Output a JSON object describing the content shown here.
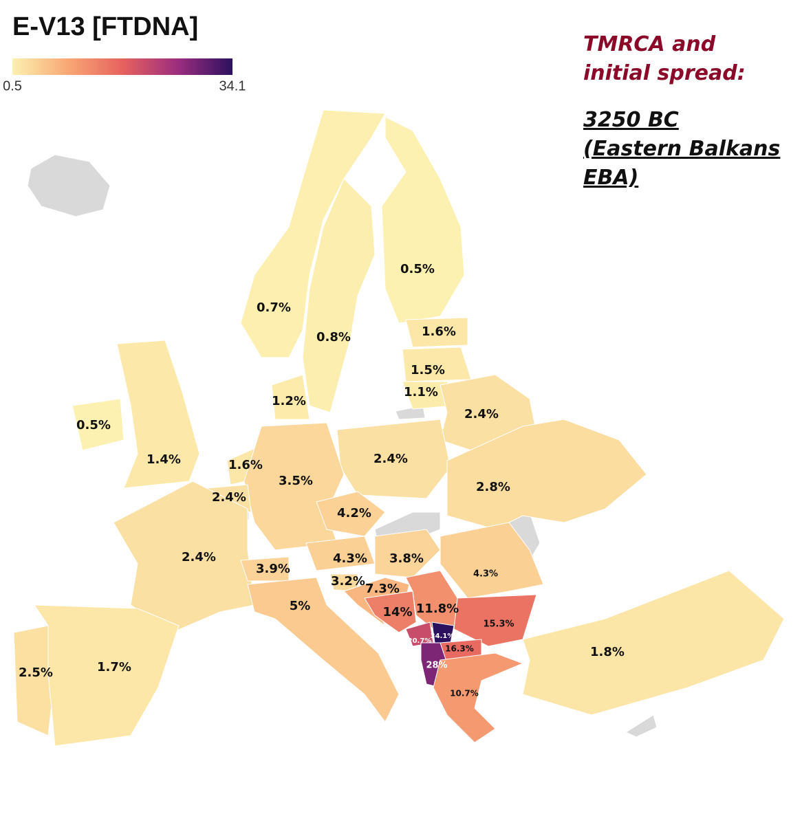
{
  "chart_data": {
    "type": "choropleth",
    "title": "E-V13 [FTDNA]",
    "clim": [
      0.5,
      34.1
    ],
    "cticks": [
      0.5,
      34.1
    ],
    "annotations": [
      "TMRCA and initial spread:",
      "3250 BC (Eastern Balkans EBA)"
    ],
    "values": [
      0.5,
      0.7,
      0.8,
      1.6,
      1.5,
      1.1,
      1.2,
      2.4,
      0.5,
      1.4,
      2.4,
      1.6,
      3.5,
      2.4,
      2.8,
      4.2,
      2.4,
      4.3,
      3.8,
      4.3,
      3.9,
      3.2,
      7.3,
      5,
      11.8,
      14,
      15.3,
      20.7,
      34.1,
      16.3,
      28,
      10.7,
      1.8,
      2.5,
      1.7
    ],
    "value_labels": [
      "0.5%",
      "0.7%",
      "0.8%",
      "1.6%",
      "1.5%",
      "1.1%",
      "1.2%",
      "2.4%",
      "0.5%",
      "1.4%",
      "2.4%",
      "1.6%",
      "3.5%",
      "2.4%",
      "2.8%",
      "4.2%",
      "2.4%",
      "4.3%",
      "3.8%",
      "4.3%",
      "3.9%",
      "3.2%",
      "7.3%",
      "5%",
      "11.8%",
      "14%",
      "15.3%",
      "20.7%",
      "34.1%",
      "16.3%",
      "28%",
      "10.7%",
      "1.8%",
      "2.5%",
      "1.7%"
    ]
  }
}
